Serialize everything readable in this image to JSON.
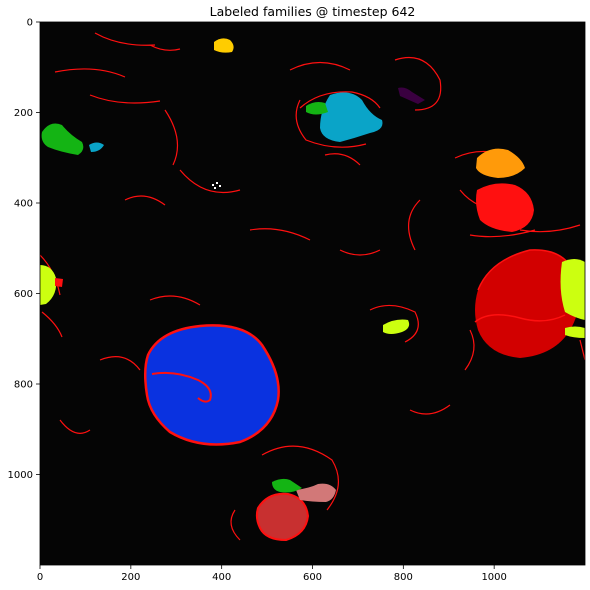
{
  "title": "Labeled families @ timestep 642",
  "x_ticks": [
    "0",
    "200",
    "400",
    "600",
    "800",
    "1000"
  ],
  "y_ticks": [
    "0",
    "200",
    "400",
    "600",
    "800",
    "1000"
  ],
  "colors": {
    "background": "#050505",
    "boundary": "#ff0000",
    "blue": "#0a32e0",
    "cyan": "#0aa4c8",
    "green": "#14b414",
    "yellow": "#ffcc00",
    "orange": "#ff9a0a",
    "red": "#ff1010",
    "dark_red": "#d20000",
    "lime": "#ccff10",
    "brick": "#c83030",
    "pink": "#d27878",
    "purple": "#3a0040",
    "white": "#ffffff"
  },
  "regions": [
    {
      "id": "blue",
      "color": "blue"
    },
    {
      "id": "big-red",
      "color": "dark_red"
    },
    {
      "id": "cyan",
      "color": "cyan"
    },
    {
      "id": "green-left",
      "color": "green"
    },
    {
      "id": "orange",
      "color": "orange"
    },
    {
      "id": "red-mid",
      "color": "red"
    },
    {
      "id": "lime-left",
      "color": "lime"
    },
    {
      "id": "lime-right",
      "color": "lime"
    },
    {
      "id": "lime-small",
      "color": "lime"
    },
    {
      "id": "yellow-top",
      "color": "yellow"
    },
    {
      "id": "brick-bottom",
      "color": "brick"
    },
    {
      "id": "pink-bottom",
      "color": "pink"
    },
    {
      "id": "green-bottom",
      "color": "green"
    },
    {
      "id": "purple",
      "color": "purple"
    }
  ]
}
